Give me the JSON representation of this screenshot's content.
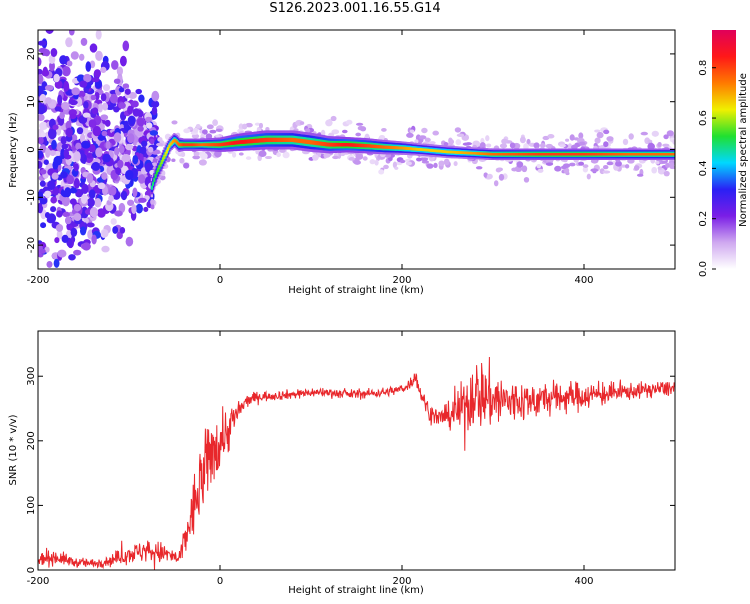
{
  "figure_title": "S126.2023.001.16.55.G14",
  "colors": {
    "snr_line": "#e8272b",
    "frame": "#000000",
    "colormap": [
      "#ffffff",
      "#cfa8f0",
      "#7a1ee6",
      "#2a20f5",
      "#00d8ff",
      "#20e030",
      "#f0f000",
      "#ff7a00",
      "#ff1818",
      "#e0005a"
    ]
  },
  "chart_data": [
    {
      "type": "heatmap",
      "title": "",
      "xlabel": "Height of straight line (km)",
      "ylabel": "Frequency (Hz)",
      "xlim": [
        -200,
        500
      ],
      "ylim": [
        -25,
        25
      ],
      "xticks": [
        -200,
        0,
        200,
        400
      ],
      "yticks": [
        -20,
        -10,
        0,
        10,
        20
      ],
      "xtick_labels": [
        "-200",
        "0",
        "200",
        "400"
      ],
      "ytick_labels": [
        "-20",
        "-10",
        "0",
        "10",
        "20"
      ],
      "grid": false,
      "colorbar": {
        "label": "Normalized spectral amplitude",
        "range": [
          0.0,
          0.95
        ],
        "ticks": [
          0.0,
          0.2,
          0.4,
          0.6,
          0.8
        ],
        "tick_labels": [
          "0.0",
          "0.2",
          "0.4",
          "0.6",
          "0.8"
        ]
      },
      "ridge": {
        "x": [
          -75,
          -70,
          -65,
          -60,
          -55,
          -50,
          -45,
          -40,
          -30,
          -20,
          0,
          20,
          50,
          80,
          100,
          120,
          140,
          160,
          180,
          200,
          220,
          250,
          280,
          300,
          350,
          400,
          450,
          500
        ],
        "frequency": [
          -8,
          -5,
          -3,
          -1,
          1,
          2,
          1,
          1,
          1,
          1,
          1,
          1.5,
          2,
          2,
          1.5,
          1,
          1,
          0.8,
          0.5,
          0.3,
          0,
          -0.5,
          -0.8,
          -1,
          -1,
          -1,
          -1,
          -1
        ],
        "amplitude": [
          0.5,
          0.55,
          0.6,
          0.65,
          0.7,
          0.75,
          0.8,
          0.85,
          0.85,
          0.8,
          0.85,
          0.9,
          0.85,
          0.8,
          0.8,
          0.85,
          0.9,
          0.85,
          0.8,
          0.75,
          0.7,
          0.7,
          0.75,
          0.8,
          0.85,
          0.85,
          0.8,
          0.8
        ],
        "halfwidth": [
          2,
          2,
          2,
          2,
          1.5,
          1.5,
          1.5,
          1.3,
          1.3,
          1.3,
          1.5,
          1.8,
          2,
          2,
          2,
          1.8,
          1.6,
          1.6,
          1.5,
          1.4,
          1.3,
          1.3,
          1.2,
          1.2,
          1.2,
          1.2,
          1.2,
          1.2
        ]
      },
      "scatter_region": {
        "x": [
          -200,
          -70
        ],
        "frequency": [
          -25,
          25
        ]
      }
    },
    {
      "type": "line",
      "title": "",
      "xlabel": "Height of straight line (km)",
      "ylabel": "SNR (10 * v/v)",
      "xlim": [
        -200,
        500
      ],
      "ylim": [
        0,
        370
      ],
      "xticks": [
        -200,
        0,
        200,
        400
      ],
      "yticks": [
        0,
        100,
        200,
        300
      ],
      "xtick_labels": [
        "-200",
        "0",
        "200",
        "400"
      ],
      "ytick_labels": [
        "0",
        "100",
        "200",
        "300"
      ],
      "grid": false,
      "series": [
        {
          "values_description": "",
          "x": [
            -200,
            -180,
            -160,
            -140,
            -120,
            -100,
            -80,
            -60,
            -50,
            -45,
            -40,
            -30,
            -20,
            -10,
            0,
            10,
            20,
            30,
            40,
            60,
            80,
            100,
            120,
            140,
            160,
            180,
            200,
            210,
            215,
            220,
            230,
            240,
            250,
            260,
            270,
            280,
            290,
            300,
            320,
            340,
            360,
            380,
            400,
            420,
            440,
            460,
            480,
            500
          ],
          "y": [
            15,
            20,
            12,
            10,
            15,
            25,
            30,
            25,
            20,
            15,
            40,
            90,
            140,
            180,
            200,
            220,
            245,
            262,
            268,
            270,
            272,
            275,
            275,
            272,
            273,
            275,
            280,
            290,
            300,
            275,
            245,
            235,
            238,
            245,
            255,
            275,
            270,
            265,
            260,
            262,
            265,
            268,
            270,
            272,
            275,
            278,
            280,
            282
          ],
          "noise": [
            8,
            10,
            6,
            6,
            8,
            12,
            15,
            14,
            10,
            8,
            20,
            40,
            50,
            45,
            40,
            30,
            15,
            8,
            7,
            6,
            6,
            6,
            6,
            6,
            6,
            6,
            6,
            8,
            8,
            10,
            12,
            12,
            15,
            25,
            40,
            45,
            45,
            40,
            30,
            25,
            22,
            20,
            18,
            15,
            12,
            10,
            10,
            10
          ]
        }
      ]
    }
  ]
}
